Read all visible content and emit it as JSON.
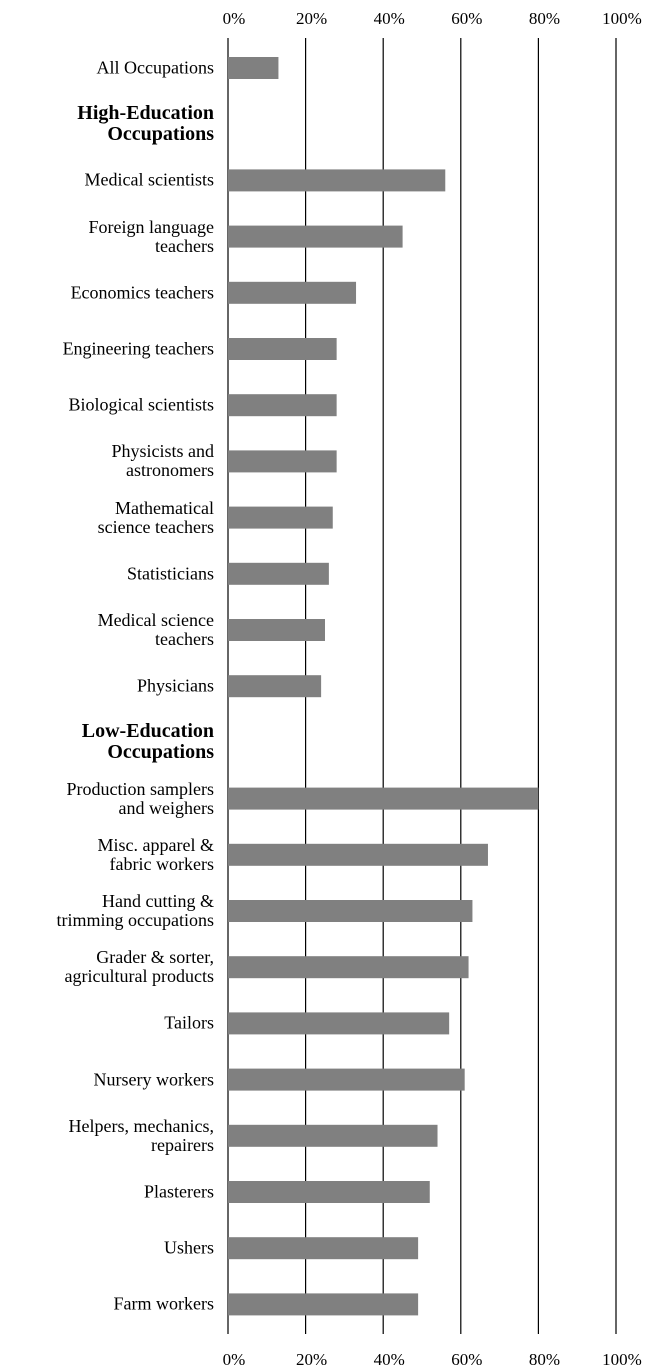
{
  "chart_data": {
    "type": "bar",
    "orientation": "horizontal",
    "categories": [
      "All Occupations",
      "High-Education\nOccupations",
      "Medical scientists",
      "Foreign language\nteachers",
      "Economics teachers",
      "Engineering teachers",
      "Biological scientists",
      "Physicists and\nastronomers",
      "Mathematical\nscience teachers",
      "Statisticians",
      "Medical science\nteachers",
      "Physicians",
      "Low-Education\nOccupations",
      "Production samplers\nand weighers",
      "Misc. apparel &\nfabric workers",
      "Hand cutting &\ntrimming occupations",
      "Grader & sorter,\nagricultural products",
      "Tailors",
      "Nursery workers",
      "Helpers, mechanics,\nrepairers",
      "Plasterers",
      "Ushers",
      "Farm workers"
    ],
    "values": [
      13,
      null,
      56,
      45,
      33,
      28,
      28,
      28,
      27,
      26,
      25,
      24,
      null,
      80,
      67,
      63,
      62,
      57,
      61,
      54,
      52,
      49,
      49
    ],
    "color": "#808080",
    "xlim": [
      0,
      100
    ],
    "xticks": [
      {
        "value": 0,
        "label": "0%"
      },
      {
        "value": 20,
        "label": "20%"
      },
      {
        "value": 40,
        "label": "40%"
      },
      {
        "value": 60,
        "label": "60%"
      },
      {
        "value": 80,
        "label": "80%"
      },
      {
        "value": 100,
        "label": "100%"
      }
    ],
    "grid": true
  }
}
